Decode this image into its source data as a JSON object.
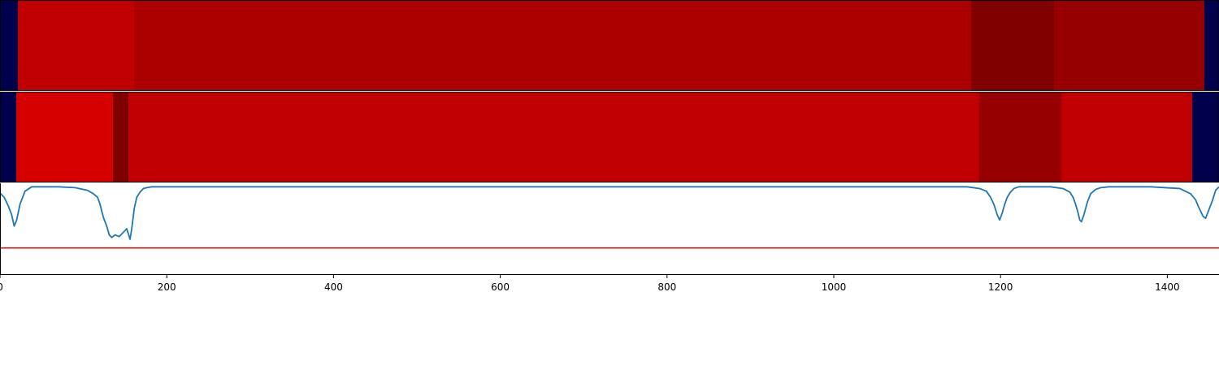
{
  "chart_data": [
    {
      "type": "heatmap",
      "xlim": [
        0,
        1462
      ],
      "segments": [
        {
          "start": 0,
          "end": 22,
          "color": "#00004c"
        },
        {
          "start": 22,
          "end": 165,
          "color": "#c00000"
        },
        {
          "start": 165,
          "end": 1195,
          "color": "#ab0000"
        },
        {
          "start": 1195,
          "end": 1297,
          "color": "#800000"
        },
        {
          "start": 1297,
          "end": 1482,
          "color": "#960000"
        },
        {
          "start": 1482,
          "end": 1500,
          "color": "#00004c"
        }
      ]
    },
    {
      "type": "heatmap",
      "xlim": [
        0,
        1462
      ],
      "segments": [
        {
          "start": 0,
          "end": 20,
          "color": "#00004c"
        },
        {
          "start": 20,
          "end": 139,
          "color": "#d60000"
        },
        {
          "start": 139,
          "end": 158,
          "color": "#800000"
        },
        {
          "start": 158,
          "end": 1205,
          "color": "#c00000"
        },
        {
          "start": 1205,
          "end": 1306,
          "color": "#960000"
        },
        {
          "start": 1306,
          "end": 1467,
          "color": "#c00000"
        },
        {
          "start": 1467,
          "end": 1500,
          "color": "#00004c"
        }
      ]
    },
    {
      "type": "line",
      "xlim": [
        0,
        1462
      ],
      "ylim": [
        -1.0,
        0.04
      ],
      "xticks": [
        0,
        200,
        400,
        600,
        800,
        1000,
        1200,
        1400
      ],
      "threshold": -0.7,
      "series": [
        {
          "color": "#1f77b4",
          "x": [
            0,
            5,
            10,
            14,
            17,
            20,
            24,
            30,
            38,
            50,
            70,
            90,
            105,
            112,
            117,
            120,
            124,
            128,
            131,
            134,
            138,
            143,
            148,
            152,
            156,
            158,
            161,
            164,
            168,
            172,
            176,
            182,
            200,
            400,
            600,
            800,
            1000,
            1100,
            1160,
            1175,
            1183,
            1188,
            1192,
            1196,
            1199,
            1202,
            1205,
            1208,
            1212,
            1216,
            1222,
            1235,
            1260,
            1275,
            1283,
            1287,
            1290,
            1293,
            1295,
            1297,
            1300,
            1304,
            1308,
            1314,
            1320,
            1330,
            1380,
            1415,
            1428,
            1434,
            1437,
            1440,
            1443,
            1446,
            1450,
            1454,
            1458,
            1462
          ],
          "y": [
            -0.07,
            -0.12,
            -0.22,
            -0.32,
            -0.45,
            -0.38,
            -0.2,
            -0.05,
            0.0,
            0.0,
            0.0,
            -0.01,
            -0.04,
            -0.08,
            -0.12,
            -0.2,
            -0.35,
            -0.45,
            -0.55,
            -0.58,
            -0.55,
            -0.57,
            -0.52,
            -0.48,
            -0.6,
            -0.48,
            -0.25,
            -0.12,
            -0.06,
            -0.02,
            -0.01,
            0.0,
            0.0,
            0.0,
            0.0,
            0.0,
            0.0,
            0.0,
            0.0,
            -0.02,
            -0.05,
            -0.12,
            -0.2,
            -0.32,
            -0.38,
            -0.3,
            -0.2,
            -0.12,
            -0.06,
            -0.02,
            0.0,
            0.0,
            0.0,
            -0.02,
            -0.06,
            -0.12,
            -0.2,
            -0.3,
            -0.38,
            -0.4,
            -0.32,
            -0.18,
            -0.08,
            -0.03,
            -0.01,
            0.0,
            0.0,
            -0.02,
            -0.08,
            -0.15,
            -0.22,
            -0.28,
            -0.34,
            -0.36,
            -0.26,
            -0.16,
            -0.04,
            0.0
          ]
        }
      ]
    }
  ]
}
